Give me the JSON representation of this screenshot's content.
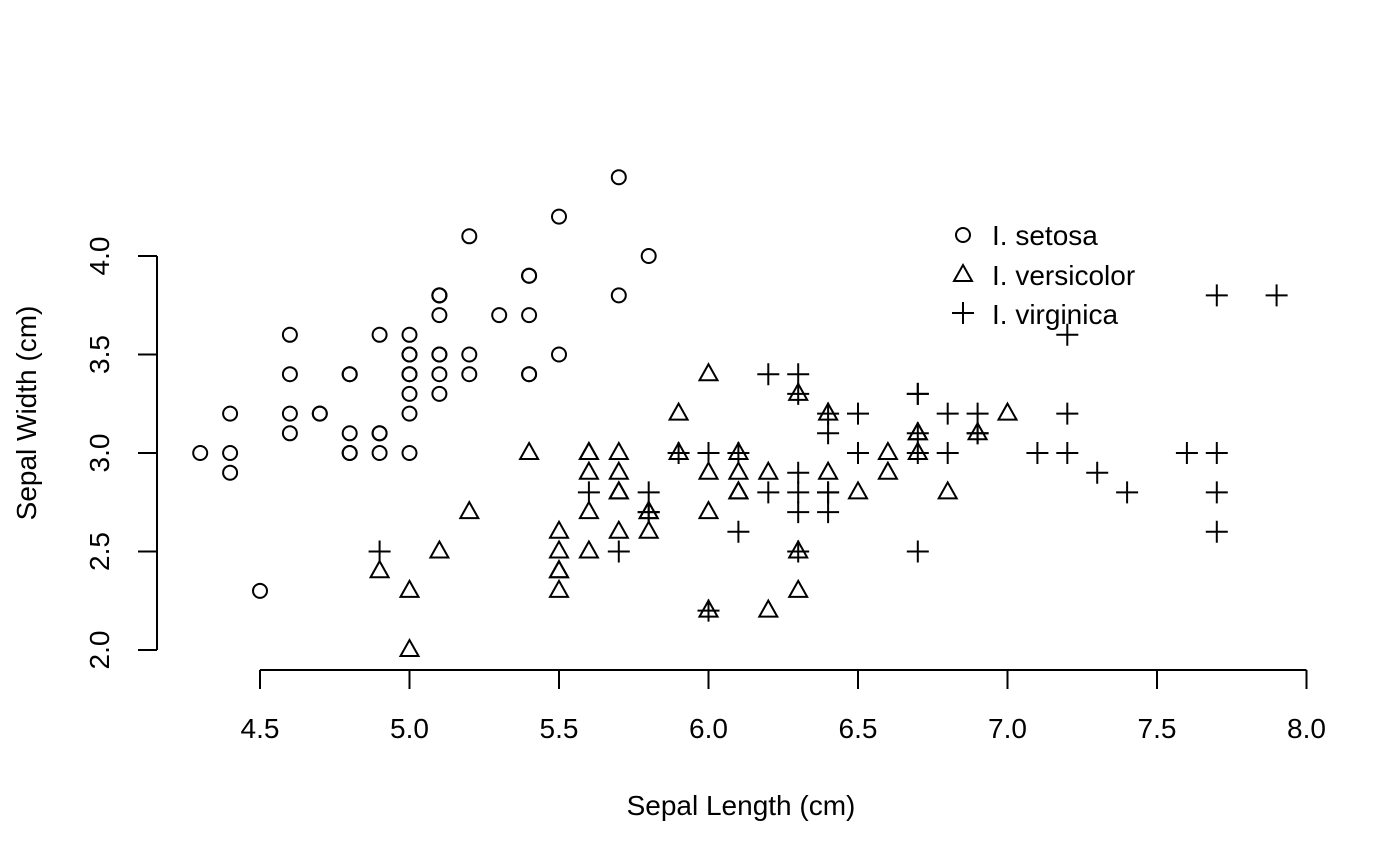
{
  "chart_data": {
    "type": "scatter",
    "title": "",
    "xlabel": "Sepal Length (cm)",
    "ylabel": "Sepal Width (cm)",
    "xlim": [
      4.3,
      7.9
    ],
    "ylim": [
      2.0,
      4.4
    ],
    "x_ticks": [
      "4.5",
      "5.0",
      "5.5",
      "6.0",
      "6.5",
      "7.0",
      "7.5",
      "8.0"
    ],
    "y_ticks": [
      "2.0",
      "2.5",
      "3.0",
      "3.5",
      "4.0"
    ],
    "grid": false,
    "legend_position": "top-right",
    "series": [
      {
        "name": "I. setosa",
        "marker": "circle",
        "points": [
          [
            5.1,
            3.5
          ],
          [
            4.9,
            3.0
          ],
          [
            4.7,
            3.2
          ],
          [
            4.6,
            3.1
          ],
          [
            5.0,
            3.6
          ],
          [
            5.4,
            3.9
          ],
          [
            4.6,
            3.4
          ],
          [
            5.0,
            3.4
          ],
          [
            4.4,
            2.9
          ],
          [
            4.9,
            3.1
          ],
          [
            5.4,
            3.7
          ],
          [
            4.8,
            3.4
          ],
          [
            4.8,
            3.0
          ],
          [
            4.3,
            3.0
          ],
          [
            5.8,
            4.0
          ],
          [
            5.7,
            4.4
          ],
          [
            5.4,
            3.9
          ],
          [
            5.1,
            3.5
          ],
          [
            5.7,
            3.8
          ],
          [
            5.1,
            3.8
          ],
          [
            5.4,
            3.4
          ],
          [
            5.1,
            3.7
          ],
          [
            4.6,
            3.6
          ],
          [
            5.1,
            3.3
          ],
          [
            4.8,
            3.4
          ],
          [
            5.0,
            3.0
          ],
          [
            5.0,
            3.4
          ],
          [
            5.2,
            3.5
          ],
          [
            5.2,
            3.4
          ],
          [
            4.7,
            3.2
          ],
          [
            4.8,
            3.1
          ],
          [
            5.4,
            3.4
          ],
          [
            5.2,
            4.1
          ],
          [
            5.5,
            4.2
          ],
          [
            4.9,
            3.1
          ],
          [
            5.0,
            3.2
          ],
          [
            5.5,
            3.5
          ],
          [
            4.9,
            3.6
          ],
          [
            4.4,
            3.0
          ],
          [
            5.1,
            3.4
          ],
          [
            5.0,
            3.5
          ],
          [
            4.5,
            2.3
          ],
          [
            4.4,
            3.2
          ],
          [
            5.0,
            3.5
          ],
          [
            5.1,
            3.8
          ],
          [
            4.8,
            3.0
          ],
          [
            5.1,
            3.8
          ],
          [
            4.6,
            3.2
          ],
          [
            5.3,
            3.7
          ],
          [
            5.0,
            3.3
          ]
        ]
      },
      {
        "name": "I. versicolor",
        "marker": "triangle",
        "points": [
          [
            7.0,
            3.2
          ],
          [
            6.4,
            3.2
          ],
          [
            6.9,
            3.1
          ],
          [
            5.5,
            2.3
          ],
          [
            6.5,
            2.8
          ],
          [
            5.7,
            2.8
          ],
          [
            6.3,
            3.3
          ],
          [
            4.9,
            2.4
          ],
          [
            6.6,
            2.9
          ],
          [
            5.2,
            2.7
          ],
          [
            5.0,
            2.0
          ],
          [
            5.9,
            3.0
          ],
          [
            6.0,
            2.2
          ],
          [
            6.1,
            2.9
          ],
          [
            5.6,
            2.9
          ],
          [
            6.7,
            3.1
          ],
          [
            5.6,
            3.0
          ],
          [
            5.8,
            2.7
          ],
          [
            6.2,
            2.2
          ],
          [
            5.6,
            2.5
          ],
          [
            5.9,
            3.2
          ],
          [
            6.1,
            2.8
          ],
          [
            6.3,
            2.5
          ],
          [
            6.1,
            2.8
          ],
          [
            6.4,
            2.9
          ],
          [
            6.6,
            3.0
          ],
          [
            6.8,
            2.8
          ],
          [
            6.7,
            3.0
          ],
          [
            6.0,
            2.9
          ],
          [
            5.7,
            2.6
          ],
          [
            5.5,
            2.4
          ],
          [
            5.5,
            2.4
          ],
          [
            5.8,
            2.7
          ],
          [
            6.0,
            2.7
          ],
          [
            5.4,
            3.0
          ],
          [
            6.0,
            3.4
          ],
          [
            6.7,
            3.1
          ],
          [
            6.3,
            2.3
          ],
          [
            5.6,
            3.0
          ],
          [
            5.5,
            2.5
          ],
          [
            5.5,
            2.6
          ],
          [
            6.1,
            3.0
          ],
          [
            5.8,
            2.6
          ],
          [
            5.0,
            2.3
          ],
          [
            5.6,
            2.7
          ],
          [
            5.7,
            3.0
          ],
          [
            5.7,
            2.9
          ],
          [
            6.2,
            2.9
          ],
          [
            5.1,
            2.5
          ],
          [
            5.7,
            2.8
          ]
        ]
      },
      {
        "name": "I. virginica",
        "marker": "plus",
        "points": [
          [
            6.3,
            3.3
          ],
          [
            5.8,
            2.7
          ],
          [
            7.1,
            3.0
          ],
          [
            6.3,
            2.9
          ],
          [
            6.5,
            3.0
          ],
          [
            7.6,
            3.0
          ],
          [
            4.9,
            2.5
          ],
          [
            7.3,
            2.9
          ],
          [
            6.7,
            2.5
          ],
          [
            7.2,
            3.6
          ],
          [
            6.5,
            3.2
          ],
          [
            6.4,
            2.7
          ],
          [
            6.8,
            3.0
          ],
          [
            5.7,
            2.5
          ],
          [
            5.8,
            2.8
          ],
          [
            6.4,
            3.2
          ],
          [
            6.5,
            3.0
          ],
          [
            7.7,
            3.8
          ],
          [
            7.7,
            2.6
          ],
          [
            6.0,
            2.2
          ],
          [
            6.9,
            3.2
          ],
          [
            5.6,
            2.8
          ],
          [
            7.7,
            2.8
          ],
          [
            6.3,
            2.7
          ],
          [
            6.7,
            3.3
          ],
          [
            7.2,
            3.2
          ],
          [
            6.2,
            2.8
          ],
          [
            6.1,
            3.0
          ],
          [
            6.4,
            2.8
          ],
          [
            7.2,
            3.0
          ],
          [
            7.4,
            2.8
          ],
          [
            7.9,
            3.8
          ],
          [
            6.4,
            2.8
          ],
          [
            6.3,
            2.8
          ],
          [
            6.1,
            2.6
          ],
          [
            7.7,
            3.0
          ],
          [
            6.3,
            3.4
          ],
          [
            6.4,
            3.1
          ],
          [
            6.0,
            3.0
          ],
          [
            6.9,
            3.1
          ],
          [
            6.7,
            3.1
          ],
          [
            6.9,
            3.1
          ],
          [
            5.8,
            2.7
          ],
          [
            6.8,
            3.2
          ],
          [
            6.7,
            3.3
          ],
          [
            6.7,
            3.0
          ],
          [
            6.3,
            2.5
          ],
          [
            6.5,
            3.0
          ],
          [
            6.2,
            3.4
          ],
          [
            5.9,
            3.0
          ]
        ]
      }
    ]
  }
}
